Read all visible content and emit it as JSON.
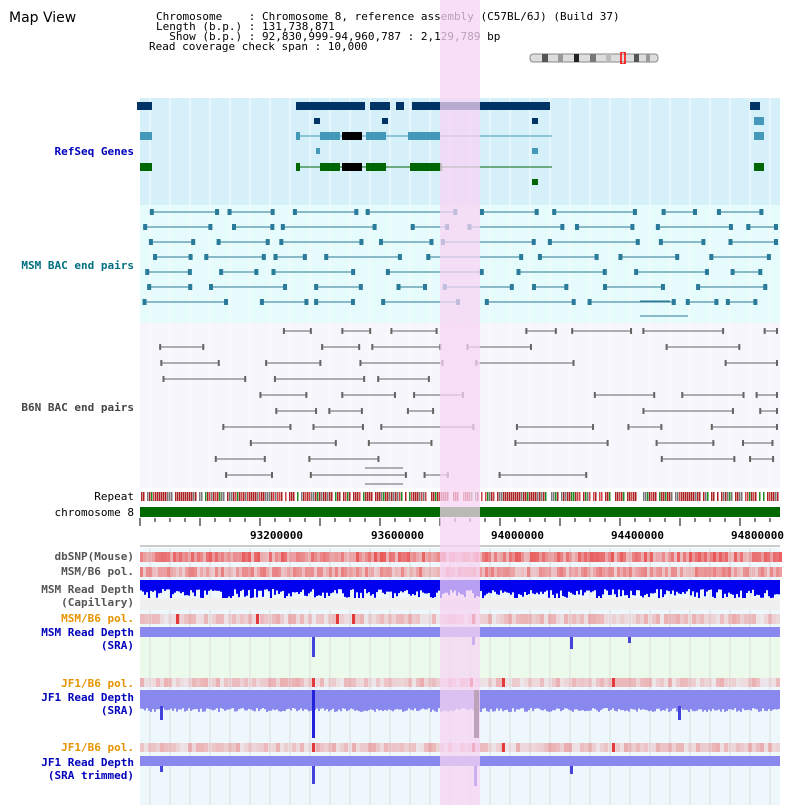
{
  "header": {
    "title": "Map View",
    "info_lines": [
      "Chromosome    : Chromosome 8, reference assembly (C57BL/6J) (Build 37)",
      "Length (b.p.) : 131,738,871",
      "  Show (b.p.) : 92,830,999-94,960,787 : 2,129,789 bp",
      "Read coverage check span : 10,000"
    ]
  },
  "tracks": {
    "refseq": "RefSeq Genes",
    "msm_bac": "MSM BAC end pairs",
    "b6n_bac": "B6N BAC end pairs",
    "repeat": "Repeat",
    "chromosome": "chromosome 8",
    "dbsnp": "dbSNP(Mouse)",
    "msm_b6_pol": "MSM/B6 pol.",
    "msm_depth_cap_1": "MSM Read Depth",
    "msm_depth_cap_2": "(Capillary)",
    "msm_b6_pol_2": "MSM/B6 pol.",
    "msm_depth_sra_1": "MSM Read Depth",
    "msm_depth_sra_2": "(SRA)",
    "jf1_b6_pol": "JF1/B6 pol.",
    "jf1_depth_sra_1": "JF1 Read Depth",
    "jf1_depth_sra_2": "(SRA)",
    "jf1_b6_pol_2": "JF1/B6 pol.",
    "jf1_depth_trim_1": "JF1 Read Depth",
    "jf1_depth_trim_2": "(SRA trimmed)"
  },
  "axis": {
    "ticks": [
      "93200000",
      "93600000",
      "94000000",
      "94400000",
      "94800000"
    ]
  },
  "colors": {
    "refseq_bg": "#d6f0fa",
    "msm_bg": "#e6fbfb",
    "b6n_bg": "#f4f4fc",
    "highlight": "#f7d4f3",
    "chromosome": "#006a00",
    "msm_label": "#006f7f",
    "refseq_label": "#0000bb",
    "b6n_label": "#444444",
    "pol_label": "#e59400",
    "depth_blue": "#0000ee"
  }
}
